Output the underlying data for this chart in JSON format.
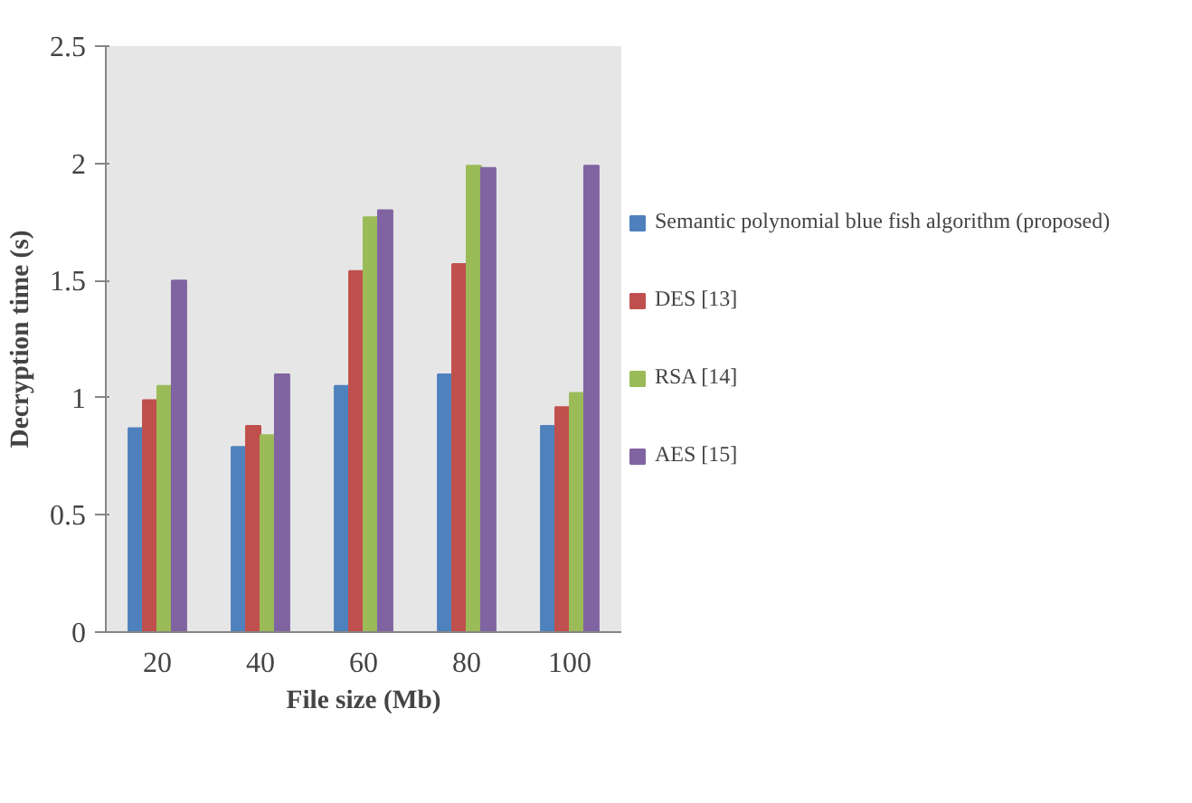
{
  "chart_data": {
    "type": "bar",
    "xlabel": "File size (Mb)",
    "ylabel": "Decryption time (s)",
    "categories": [
      "20",
      "40",
      "60",
      "80",
      "100"
    ],
    "series": [
      {
        "name": "Semantic polynomial blue fish algorithm (proposed)",
        "color": "#4f81bd",
        "values": [
          0.87,
          0.79,
          1.05,
          1.1,
          0.88
        ]
      },
      {
        "name": "DES [13]",
        "color": "#c0504d",
        "values": [
          0.99,
          0.88,
          1.54,
          1.57,
          0.96
        ]
      },
      {
        "name": "RSA [14]",
        "color": "#9bbb59",
        "values": [
          1.05,
          0.84,
          1.77,
          1.99,
          1.02
        ]
      },
      {
        "name": "AES [15]",
        "color": "#8064a2",
        "values": [
          1.5,
          1.1,
          1.8,
          1.98,
          1.99
        ]
      }
    ],
    "ylim": [
      0,
      2.5
    ],
    "yticks": [
      0,
      0.5,
      1,
      1.5,
      2,
      2.5
    ],
    "grid": false,
    "legend": "right"
  }
}
